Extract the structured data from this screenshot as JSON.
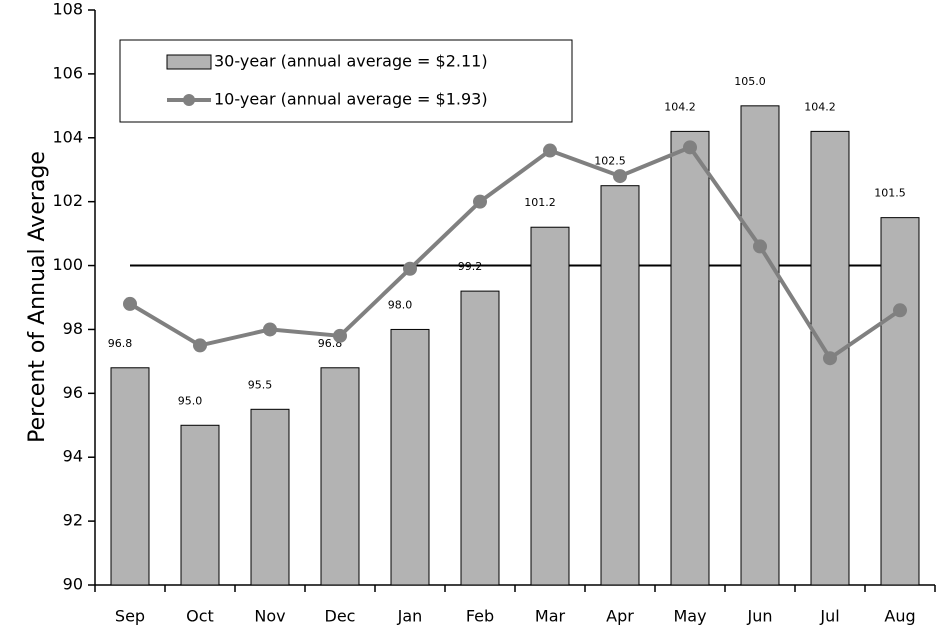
{
  "chart_data": {
    "type": "bar",
    "y_label": "Percent of Annual Average",
    "categories": [
      "Sep",
      "Oct",
      "Nov",
      "Dec",
      "Jan",
      "Feb",
      "Mar",
      "Apr",
      "May",
      "Jun",
      "Jul",
      "Aug"
    ],
    "series": [
      {
        "name": "30-year (annual average = $2.11)",
        "type": "bar",
        "color": "#b3b3b3",
        "values": [
          96.8,
          95.0,
          95.5,
          96.8,
          98.0,
          99.2,
          101.2,
          102.5,
          104.2,
          105.0,
          104.2,
          101.5
        ],
        "value_labels": [
          "96.8",
          "95.0",
          "95.5",
          "96.8",
          "98.0",
          "99.2",
          "101.2",
          "102.5",
          "104.2",
          "105.0",
          "104.2",
          "101.5"
        ]
      },
      {
        "name": "10-year (annual average = $1.93)",
        "type": "line",
        "color": "#808080",
        "values": [
          98.8,
          97.5,
          98.0,
          97.8,
          99.9,
          102.0,
          103.6,
          102.8,
          103.7,
          100.6,
          97.1,
          98.6
        ]
      }
    ],
    "reference_line": 100,
    "ylim": [
      90,
      108
    ],
    "yticks": [
      90,
      92,
      94,
      96,
      98,
      100,
      102,
      104,
      106,
      108
    ],
    "grid": false
  }
}
